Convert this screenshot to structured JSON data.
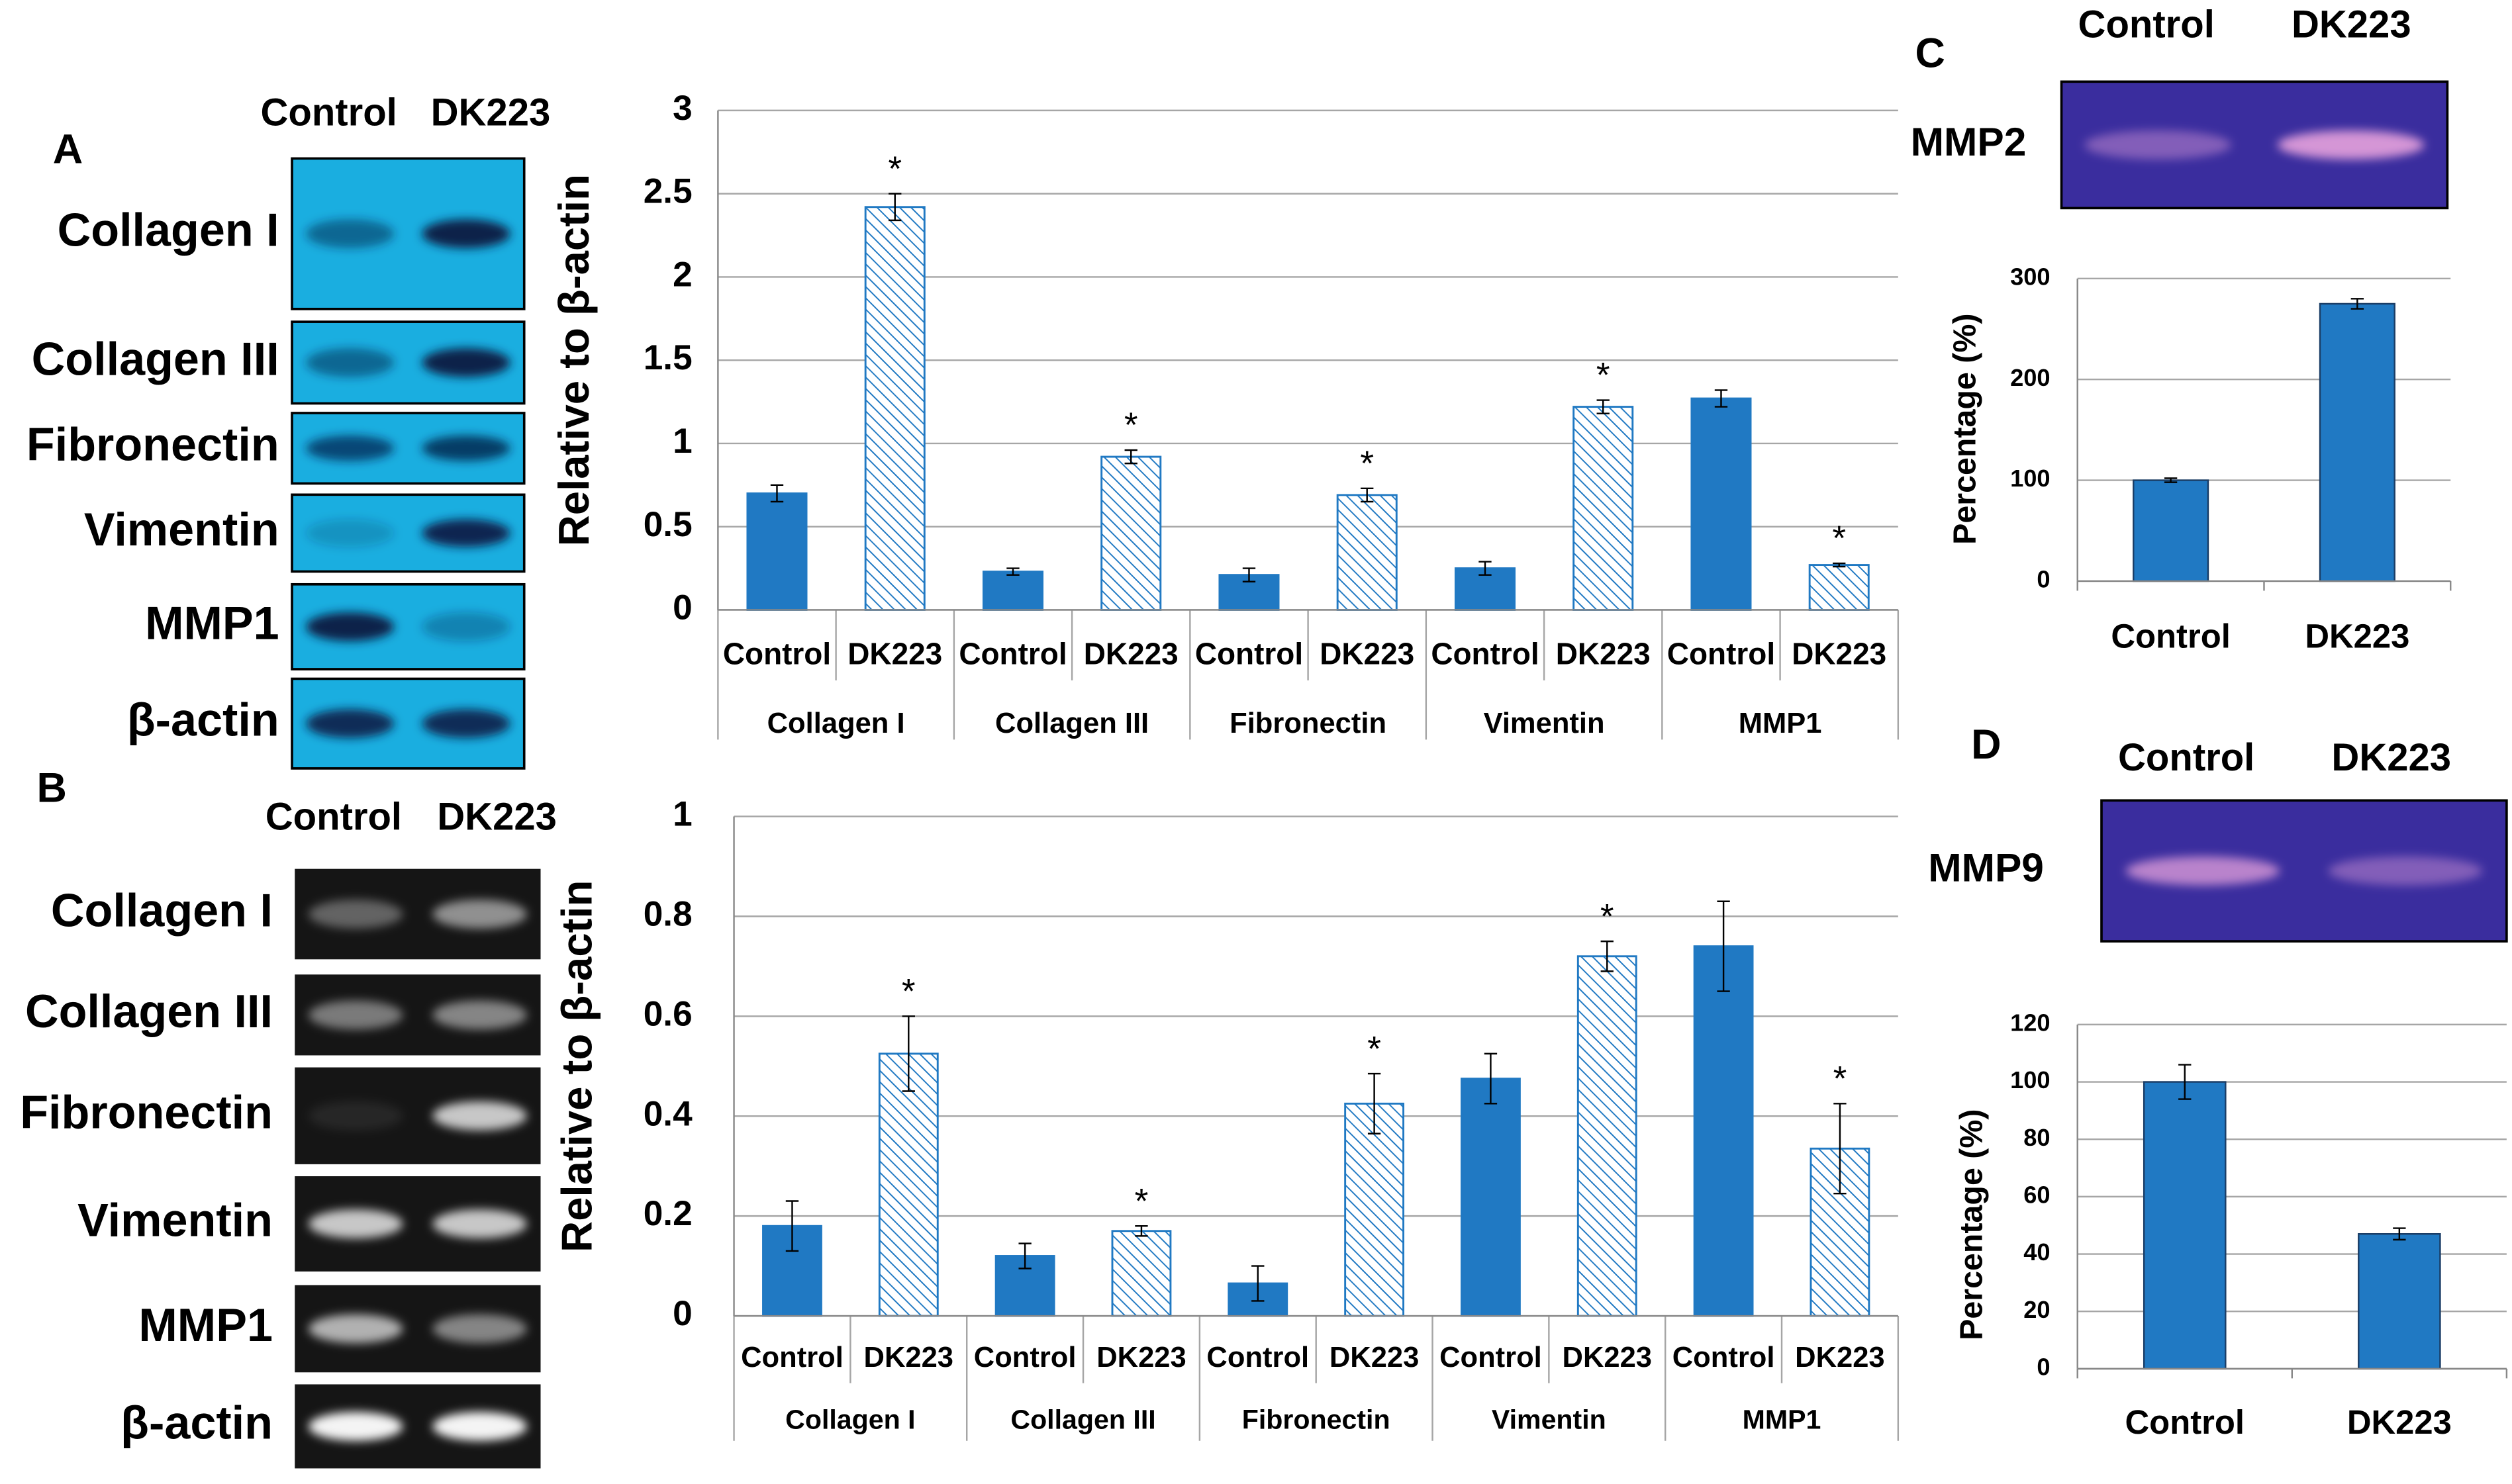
{
  "blots": [
    {
      "label": "A",
      "columns": [
        "Control",
        "DK223"
      ],
      "rows": [
        "Collagen I",
        "Collagen III",
        "Fibronectin",
        "Vimentin",
        "MMP1",
        "β-actin"
      ]
    },
    {
      "label": "B",
      "columns": [
        "Control",
        "DK223"
      ],
      "rows": [
        "Collagen I",
        "Collagen III",
        "Fibronectin",
        "Vimentin",
        "MMP1",
        "β-actin"
      ]
    },
    {
      "label": "C",
      "columns": [
        "Control",
        "DK223"
      ],
      "rows": [
        "MMP2"
      ]
    },
    {
      "label": "D",
      "columns": [
        "Control",
        "DK223"
      ],
      "rows": [
        "MMP9"
      ]
    }
  ],
  "chart_data": [
    {
      "type": "bar",
      "ylabel": "Relative to β-actin",
      "categories": [
        "Collagen I",
        "Collagen III",
        "Fibronectin",
        "Vimentin",
        "MMP1"
      ],
      "series": [
        {
          "name": "Control",
          "color": "#2079c3",
          "pattern": "solid",
          "values": [
            0.7,
            0.23,
            0.21,
            0.25,
            1.27
          ],
          "errors": [
            0.05,
            0.02,
            0.04,
            0.04,
            0.05
          ]
        },
        {
          "name": "DK223",
          "color": "#2079c3",
          "pattern": "hatch",
          "values": [
            2.42,
            0.92,
            0.69,
            1.22,
            0.27
          ],
          "errors": [
            0.08,
            0.04,
            0.04,
            0.04,
            0.01
          ],
          "annotations": [
            "*",
            "*",
            "*",
            "*",
            "*"
          ]
        }
      ],
      "ylim": [
        0,
        3
      ],
      "yticks": [
        0,
        0.5,
        1,
        1.5,
        2,
        2.5,
        3
      ],
      "grid": true
    },
    {
      "type": "bar",
      "ylabel": "Relative to β-actin",
      "categories": [
        "Collagen I",
        "Collagen III",
        "Fibronectin",
        "Vimentin",
        "MMP1"
      ],
      "series": [
        {
          "name": "Control",
          "color": "#2079c3",
          "pattern": "solid",
          "values": [
            0.18,
            0.12,
            0.065,
            0.475,
            0.74
          ],
          "errors": [
            0.05,
            0.025,
            0.035,
            0.05,
            0.09
          ]
        },
        {
          "name": "DK223",
          "color": "#2079c3",
          "pattern": "hatch",
          "values": [
            0.525,
            0.17,
            0.425,
            0.72,
            0.335
          ],
          "errors": [
            0.075,
            0.01,
            0.06,
            0.03,
            0.09
          ],
          "annotations": [
            "*",
            "*",
            "*",
            "*",
            "*"
          ]
        }
      ],
      "ylim": [
        0,
        1
      ],
      "yticks": [
        0,
        0.2,
        0.4,
        0.6,
        0.8,
        1
      ],
      "grid": true
    },
    {
      "type": "bar",
      "ylabel": "Percentage (%)",
      "categories": [
        "Control",
        "DK223"
      ],
      "values": [
        100,
        275
      ],
      "errors": [
        2,
        5
      ],
      "color": "#2079c3",
      "ylim": [
        0,
        300
      ],
      "yticks": [
        0,
        100,
        200,
        300
      ],
      "grid": true
    },
    {
      "type": "bar",
      "ylabel": "Percentage (%)",
      "categories": [
        "Control",
        "DK223"
      ],
      "values": [
        100,
        47
      ],
      "errors": [
        6,
        2
      ],
      "color": "#2079c3",
      "ylim": [
        0,
        120
      ],
      "yticks": [
        0,
        20,
        40,
        60,
        80,
        100,
        120
      ],
      "grid": true
    }
  ]
}
